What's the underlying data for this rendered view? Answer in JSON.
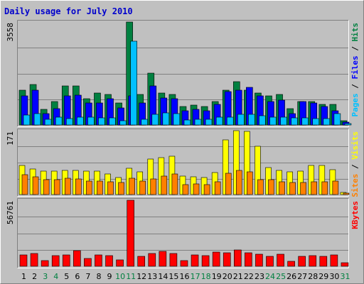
{
  "chart_data": {
    "type": "bar",
    "title": "Daily usage for July 2010",
    "days": [
      "1",
      "2",
      "3",
      "4",
      "5",
      "6",
      "7",
      "8",
      "9",
      "10",
      "11",
      "12",
      "13",
      "14",
      "15",
      "16",
      "17",
      "18",
      "19",
      "20",
      "21",
      "22",
      "23",
      "24",
      "25",
      "26",
      "27",
      "28",
      "29",
      "30",
      "31"
    ],
    "weekend_days": [
      "3",
      "4",
      "10",
      "11",
      "17",
      "18",
      "24",
      "25",
      "31"
    ],
    "colors": {
      "title": "#0000cc",
      "hits": "#008040",
      "files": "#0000ff",
      "pages": "#00c0ff",
      "visits": "#ffff00",
      "sites": "#ff8000",
      "kbytes": "#ff0000",
      "weekday_label": "#000000",
      "weekend_label": "#008040",
      "panel_bg": "#c0c0c0",
      "grid": "#808080",
      "frame_light": "#ffffff",
      "frame_dark": "#808080"
    },
    "panels": [
      {
        "id": "hits-files-pages",
        "max_label": "3558",
        "ymax": 3558,
        "legend": [
          {
            "text": "Pages",
            "color": "#00c0ff"
          },
          {
            "text": " / ",
            "color": "#000000"
          },
          {
            "text": "Files",
            "color": "#0000ff"
          },
          {
            "text": " / ",
            "color": "#000000"
          },
          {
            "text": "Hits",
            "color": "#008040"
          }
        ],
        "series": [
          {
            "name": "Hits",
            "color": "#008040",
            "values": [
              1200,
              1400,
              550,
              820,
              1350,
              1350,
              920,
              1100,
              1050,
              760,
              3558,
              1050,
              1800,
              1100,
              1050,
              650,
              680,
              650,
              800,
              1200,
              1500,
              1200,
              1100,
              1000,
              1050,
              570,
              800,
              820,
              700,
              700,
              150
            ]
          },
          {
            "name": "Files",
            "color": "#0000ff",
            "values": [
              1000,
              1200,
              400,
              560,
              1000,
              1020,
              750,
              760,
              900,
              600,
              1000,
              750,
              1350,
              930,
              900,
              500,
              550,
              500,
              700,
              1150,
              1200,
              1300,
              1000,
              800,
              850,
              390,
              800,
              750,
              650,
              480,
              100
            ]
          },
          {
            "name": "Pages",
            "color": "#00c0ff",
            "values": [
              350,
              390,
              190,
              260,
              220,
              280,
              270,
              250,
              250,
              150,
              2900,
              200,
              380,
              420,
              400,
              160,
              200,
              190,
              270,
              280,
              380,
              380,
              320,
              270,
              280,
              250,
              240,
              230,
              220,
              400,
              40
            ]
          }
        ]
      },
      {
        "id": "visits-sites",
        "max_label": "171",
        "ymax": 171,
        "legend": [
          {
            "text": "Sites",
            "color": "#ff8000"
          },
          {
            "text": " / ",
            "color": "#000000"
          },
          {
            "text": "Visits",
            "color": "#ffff00"
          }
        ],
        "series": [
          {
            "name": "Visits",
            "color": "#ffff00",
            "values": [
              78,
              68,
              62,
              62,
              65,
              64,
              62,
              62,
              55,
              46,
              70,
              60,
              95,
              98,
              102,
              50,
              48,
              45,
              58,
              147,
              171,
              169,
              130,
              72,
              64,
              60,
              62,
              78,
              78,
              67,
              5
            ]
          },
          {
            "name": "Sites",
            "color": "#ff8000",
            "values": [
              53,
              48,
              40,
              40,
              43,
              42,
              36,
              36,
              35,
              33,
              43,
              36,
              42,
              50,
              56,
              27,
              28,
              26,
              34,
              57,
              64,
              60,
              40,
              40,
              35,
              32,
              32,
              35,
              35,
              37,
              3
            ]
          }
        ]
      },
      {
        "id": "kbytes",
        "max_label": "56761",
        "ymax": 56761,
        "legend": [
          {
            "text": "KBytes",
            "color": "#ff0000"
          }
        ],
        "series": [
          {
            "name": "KBytes",
            "color": "#ff0000",
            "values": [
              9500,
              10800,
              4800,
              9000,
              10000,
              13500,
              6500,
              9500,
              9000,
              5200,
              56761,
              8500,
              11000,
              12800,
              11000,
              4700,
              9800,
              9200,
              12000,
              11500,
              14000,
              11500,
              10500,
              8500,
              10300,
              4000,
              8700,
              9000,
              8700,
              9500,
              2800
            ]
          }
        ]
      }
    ]
  }
}
